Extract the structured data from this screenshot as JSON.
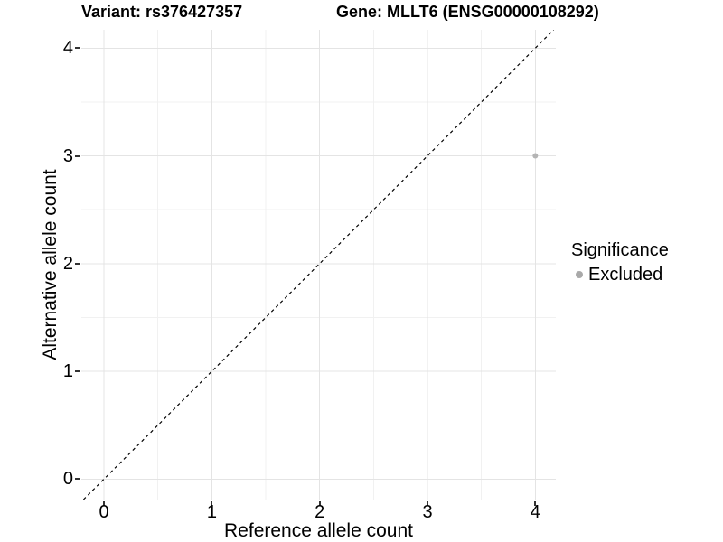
{
  "titles": {
    "variant": "Variant: rs376427357",
    "gene": "Gene: MLLT6 (ENSG00000108292)"
  },
  "axes": {
    "x": {
      "label": "Reference allele count",
      "tick_labels": [
        "0",
        "1",
        "2",
        "3",
        "4"
      ]
    },
    "y": {
      "label": "Alternative allele count",
      "tick_labels": [
        "0",
        "1",
        "2",
        "3",
        "4"
      ]
    }
  },
  "legend": {
    "title": "Significance",
    "items": [
      {
        "label": "Excluded",
        "color": "#a9a9a9"
      }
    ]
  },
  "colors": {
    "background": "#ffffff",
    "grid_major": "#e4e4e4",
    "grid_minor": "#f1f1f1",
    "axis_line": "#333333",
    "point": "#b4b4b4",
    "reference_line": "#000000",
    "text": "#000000"
  },
  "chart_data": {
    "type": "scatter",
    "title": "Variant: rs376427357 / Gene: MLLT6 (ENSG00000108292)",
    "xlabel": "Reference allele count",
    "ylabel": "Alternative allele count",
    "xlim": [
      -0.21,
      4.19
    ],
    "ylim": [
      -0.19,
      4.17
    ],
    "x_ticks": [
      0,
      1,
      2,
      3,
      4
    ],
    "y_ticks": [
      0,
      1,
      2,
      3,
      4
    ],
    "grid": {
      "major": true,
      "minor": true
    },
    "legend_position": "right",
    "series": [
      {
        "name": "Excluded",
        "color": "#b4b4b4",
        "marker": "circle",
        "marker_radius_px": 3,
        "points": [
          {
            "x": 4,
            "y": 3
          }
        ]
      }
    ],
    "reference_line": {
      "equation": "y = x",
      "style": "dashed",
      "color": "#000000"
    }
  }
}
